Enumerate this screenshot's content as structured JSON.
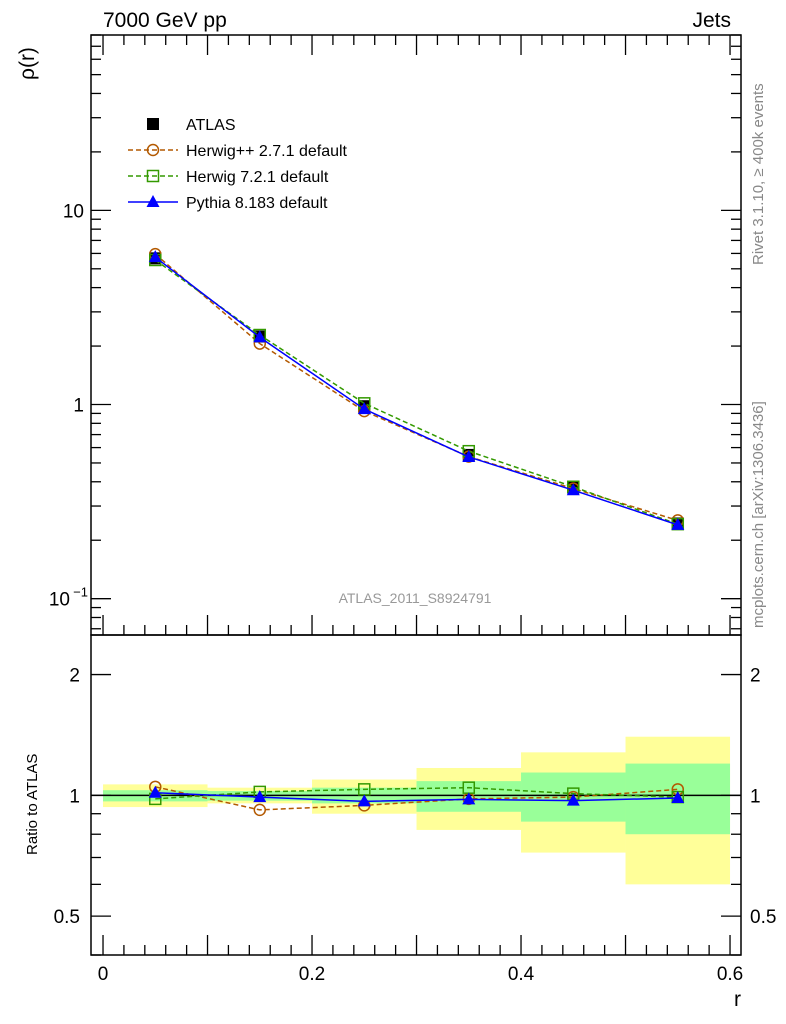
{
  "chart_data": [
    {
      "type": "line",
      "title_left": "7000 GeV pp",
      "title_right": "Jets",
      "ylabel": "ρ(r)",
      "yscale": "log",
      "ylim": [
        0.065,
        80
      ],
      "xlim": [
        -0.0115,
        0.6105
      ],
      "yticks": [
        {
          "v": 0.1,
          "label": "10",
          "exp": "−1"
        },
        {
          "v": 1,
          "label": "1"
        },
        {
          "v": 10,
          "label": "10"
        }
      ],
      "side_text_1": "Rivet 3.1.10, ≥ 400k events",
      "side_text_2": "mcplots.cern.ch [arXiv:1306.3436]",
      "analysis_label": "ATLAS_2011_S8924791",
      "legend_placement": "top-left",
      "x": [
        0.05,
        0.15,
        0.25,
        0.35,
        0.45,
        0.55
      ],
      "series": [
        {
          "name": "ATLAS",
          "marker": "filled-square",
          "color": "#000000",
          "values": [
            5.66,
            2.24,
            0.98,
            0.55,
            0.373,
            0.244
          ]
        },
        {
          "name": "Herwig++ 2.7.1 default",
          "marker": "open-circle",
          "color": "#b35900",
          "dash": true,
          "values": [
            5.95,
            2.06,
            0.925,
            0.539,
            0.369,
            0.253
          ]
        },
        {
          "name": "Herwig 7.2.1 default",
          "marker": "open-square",
          "color": "#339900",
          "dash": true,
          "values": [
            5.55,
            2.28,
            1.014,
            0.575,
            0.377,
            0.242
          ]
        },
        {
          "name": "Pythia 8.183 default",
          "marker": "filled-triangle",
          "color": "#0000ff",
          "dash": false,
          "values": [
            5.74,
            2.22,
            0.947,
            0.537,
            0.362,
            0.24
          ]
        }
      ]
    },
    {
      "type": "line",
      "ylabel": "Ratio to ATLAS",
      "xlabel": "r",
      "yscale": "log",
      "ylim": [
        0.4,
        2.51
      ],
      "xlim": [
        -0.0115,
        0.6105
      ],
      "yticks": [
        {
          "v": 0.5,
          "label": "0.5"
        },
        {
          "v": 1,
          "label": "1"
        },
        {
          "v": 2,
          "label": "2"
        }
      ],
      "xticks": [
        {
          "v": 0,
          "label": "0"
        },
        {
          "v": 0.2,
          "label": "0.2"
        },
        {
          "v": 0.4,
          "label": "0.4"
        },
        {
          "v": 0.6,
          "label": "0.6"
        }
      ],
      "bins": [
        [
          0,
          0.1
        ],
        [
          0.1,
          0.2
        ],
        [
          0.2,
          0.3
        ],
        [
          0.3,
          0.4
        ],
        [
          0.4,
          0.5
        ],
        [
          0.5,
          0.6
        ]
      ],
      "band_total": {
        "color": "#ffff99",
        "lo": [
          0.935,
          0.955,
          0.9,
          0.82,
          0.72,
          0.6
        ],
        "hi": [
          1.065,
          1.045,
          1.095,
          1.17,
          1.28,
          1.4
        ]
      },
      "band_stat": {
        "color": "#99ff99",
        "lo": [
          0.966,
          0.97,
          0.955,
          0.91,
          0.86,
          0.8
        ],
        "hi": [
          1.03,
          1.025,
          1.045,
          1.085,
          1.14,
          1.2
        ]
      },
      "x": [
        0.05,
        0.15,
        0.25,
        0.35,
        0.45,
        0.55
      ],
      "series": [
        {
          "name": "Herwig++ 2.7.1 default",
          "values": [
            1.05,
            0.92,
            0.944,
            0.98,
            0.99,
            1.035
          ]
        },
        {
          "name": "Herwig 7.2.1 default",
          "values": [
            0.98,
            1.02,
            1.035,
            1.045,
            1.01,
            0.99
          ]
        },
        {
          "name": "Pythia 8.183 default",
          "values": [
            1.015,
            0.99,
            0.966,
            0.977,
            0.97,
            0.985
          ]
        }
      ]
    }
  ]
}
